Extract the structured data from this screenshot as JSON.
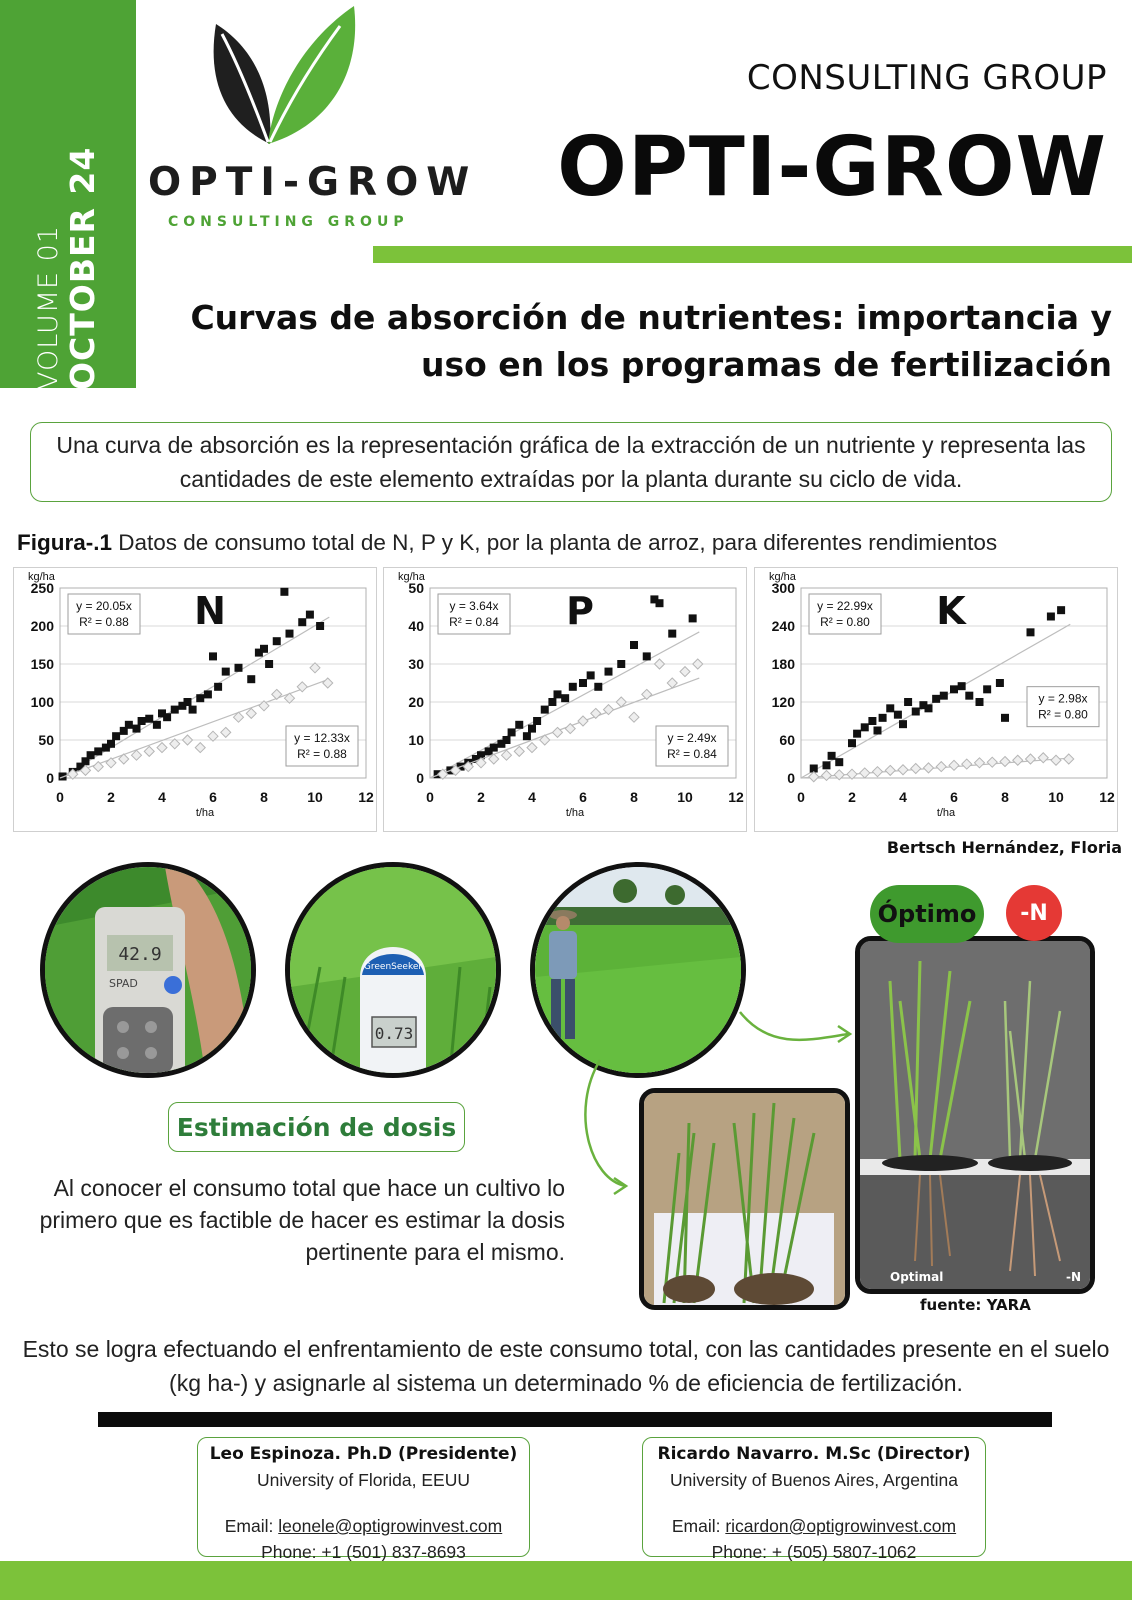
{
  "masthead": {
    "volume": "VOLUME 01",
    "date": "OCTOBER 24",
    "logo_name": "OPTI-GROW",
    "logo_subtitle": "CONSULTING GROUP",
    "brand_subtitle": "CONSULTING GROUP",
    "brand_title": "OPTI-GROW"
  },
  "headline": "Curvas de absorción de nutrientes: importancia y uso en los programas de fertilización",
  "definition": "Una curva de absorción es la representación gráfica de la extracción de un nutriente y representa las cantidades de este elemento extraídas por la planta durante su ciclo de vida.",
  "figure": {
    "caption_bold": "Figura-.1",
    "caption_text": " Datos de consumo total de N, P y K, por la planta de arroz, para diferentes rendimientos",
    "credit": "Bertsch Hernández, Floria"
  },
  "chart_data": [
    {
      "type": "scatter",
      "title": "N",
      "xlabel": "t/ha",
      "ylabel": "kg/ha",
      "xlim": [
        0,
        12
      ],
      "ylim": [
        0,
        250
      ],
      "xticks": [
        "0",
        "2",
        "4",
        "6",
        "8",
        "10",
        "12"
      ],
      "yticks": [
        "0",
        "50",
        "100",
        "150",
        "200",
        "250"
      ],
      "series": [
        {
          "marker": "square-black",
          "equation": "y = 20.05x",
          "r2": "R² = 0.88",
          "points": [
            [
              0.1,
              2
            ],
            [
              0.5,
              8
            ],
            [
              0.8,
              15
            ],
            [
              1.0,
              22
            ],
            [
              1.2,
              30
            ],
            [
              1.5,
              35
            ],
            [
              1.8,
              40
            ],
            [
              2.0,
              45
            ],
            [
              2.2,
              55
            ],
            [
              2.5,
              62
            ],
            [
              2.7,
              70
            ],
            [
              3.0,
              65
            ],
            [
              3.2,
              75
            ],
            [
              3.5,
              78
            ],
            [
              3.8,
              70
            ],
            [
              4.0,
              85
            ],
            [
              4.2,
              80
            ],
            [
              4.5,
              90
            ],
            [
              4.8,
              95
            ],
            [
              5.0,
              100
            ],
            [
              5.2,
              90
            ],
            [
              5.5,
              105
            ],
            [
              5.8,
              110
            ],
            [
              6.0,
              160
            ],
            [
              6.2,
              120
            ],
            [
              6.5,
              140
            ],
            [
              7.0,
              145
            ],
            [
              7.5,
              130
            ],
            [
              7.8,
              165
            ],
            [
              8.0,
              170
            ],
            [
              8.2,
              150
            ],
            [
              8.5,
              180
            ],
            [
              8.8,
              245
            ],
            [
              9.0,
              190
            ],
            [
              9.5,
              205
            ],
            [
              9.8,
              215
            ],
            [
              10.2,
              200
            ]
          ]
        },
        {
          "marker": "diamond-gray",
          "equation": "y = 12.33x",
          "r2": "R² = 0.88",
          "points": [
            [
              0.5,
              5
            ],
            [
              1.0,
              10
            ],
            [
              1.5,
              15
            ],
            [
              2.0,
              20
            ],
            [
              2.5,
              25
            ],
            [
              3.0,
              30
            ],
            [
              3.5,
              35
            ],
            [
              4.0,
              40
            ],
            [
              4.5,
              45
            ],
            [
              5.0,
              50
            ],
            [
              5.5,
              40
            ],
            [
              6.0,
              55
            ],
            [
              6.5,
              60
            ],
            [
              7.0,
              80
            ],
            [
              7.5,
              85
            ],
            [
              8.0,
              95
            ],
            [
              8.5,
              110
            ],
            [
              9.0,
              105
            ],
            [
              9.5,
              120
            ],
            [
              10.0,
              145
            ],
            [
              10.5,
              125
            ]
          ]
        }
      ]
    },
    {
      "type": "scatter",
      "title": "P",
      "xlabel": "t/ha",
      "ylabel": "kg/ha",
      "xlim": [
        0,
        12
      ],
      "ylim": [
        0,
        50
      ],
      "xticks": [
        "0",
        "2",
        "4",
        "6",
        "8",
        "10",
        "12"
      ],
      "yticks": [
        "0",
        "10",
        "20",
        "30",
        "40",
        "50"
      ],
      "series": [
        {
          "marker": "square-black",
          "equation": "y = 3.64x",
          "r2": "R² = 0.84",
          "points": [
            [
              0.3,
              1
            ],
            [
              0.8,
              2
            ],
            [
              1.2,
              3
            ],
            [
              1.5,
              4
            ],
            [
              1.8,
              5
            ],
            [
              2.0,
              6
            ],
            [
              2.3,
              7
            ],
            [
              2.5,
              8
            ],
            [
              2.8,
              9
            ],
            [
              3.0,
              10
            ],
            [
              3.2,
              12
            ],
            [
              3.5,
              14
            ],
            [
              3.8,
              11
            ],
            [
              4.0,
              13
            ],
            [
              4.2,
              15
            ],
            [
              4.5,
              18
            ],
            [
              4.8,
              20
            ],
            [
              5.0,
              22
            ],
            [
              5.3,
              21
            ],
            [
              5.6,
              24
            ],
            [
              6.0,
              25
            ],
            [
              6.3,
              27
            ],
            [
              6.6,
              24
            ],
            [
              7.0,
              28
            ],
            [
              7.5,
              30
            ],
            [
              8.0,
              35
            ],
            [
              8.5,
              32
            ],
            [
              8.8,
              47
            ],
            [
              9.0,
              46
            ],
            [
              9.5,
              38
            ],
            [
              10.3,
              42
            ]
          ]
        },
        {
          "marker": "diamond-gray",
          "equation": "y = 2.49x",
          "r2": "R² = 0.84",
          "points": [
            [
              0.5,
              1
            ],
            [
              1.0,
              2
            ],
            [
              1.5,
              3
            ],
            [
              2.0,
              4
            ],
            [
              2.5,
              5
            ],
            [
              3.0,
              6
            ],
            [
              3.5,
              7
            ],
            [
              4.0,
              8
            ],
            [
              4.5,
              10
            ],
            [
              5.0,
              12
            ],
            [
              5.5,
              13
            ],
            [
              6.0,
              15
            ],
            [
              6.5,
              17
            ],
            [
              7.0,
              18
            ],
            [
              7.5,
              20
            ],
            [
              8.0,
              16
            ],
            [
              8.5,
              22
            ],
            [
              9.0,
              30
            ],
            [
              9.5,
              25
            ],
            [
              10.0,
              28
            ],
            [
              10.5,
              30
            ]
          ]
        }
      ]
    },
    {
      "type": "scatter",
      "title": "K",
      "xlabel": "t/ha",
      "ylabel": "kg/ha",
      "xlim": [
        0,
        12
      ],
      "ylim": [
        0,
        300
      ],
      "xticks": [
        "0",
        "2",
        "4",
        "6",
        "8",
        "10",
        "12"
      ],
      "yticks": [
        "0",
        "60",
        "120",
        "180",
        "240",
        "300"
      ],
      "series": [
        {
          "marker": "square-black",
          "equation": "y = 22.99x",
          "r2": "R² = 0.80",
          "points": [
            [
              0.5,
              15
            ],
            [
              1.0,
              20
            ],
            [
              1.2,
              35
            ],
            [
              1.5,
              25
            ],
            [
              2.0,
              55
            ],
            [
              2.2,
              70
            ],
            [
              2.5,
              80
            ],
            [
              2.8,
              90
            ],
            [
              3.0,
              75
            ],
            [
              3.2,
              95
            ],
            [
              3.5,
              110
            ],
            [
              3.8,
              100
            ],
            [
              4.0,
              85
            ],
            [
              4.2,
              120
            ],
            [
              4.5,
              105
            ],
            [
              4.8,
              115
            ],
            [
              5.0,
              110
            ],
            [
              5.3,
              125
            ],
            [
              5.6,
              130
            ],
            [
              6.0,
              140
            ],
            [
              6.3,
              145
            ],
            [
              6.6,
              130
            ],
            [
              7.0,
              120
            ],
            [
              7.3,
              140
            ],
            [
              7.8,
              150
            ],
            [
              8.0,
              95
            ],
            [
              9.0,
              230
            ],
            [
              9.8,
              255
            ],
            [
              10.2,
              265
            ]
          ]
        },
        {
          "marker": "diamond-gray",
          "equation": "y = 2.98x",
          "r2": "R² = 0.80",
          "points": [
            [
              0.5,
              2
            ],
            [
              1.0,
              4
            ],
            [
              1.5,
              5
            ],
            [
              2.0,
              6
            ],
            [
              2.5,
              8
            ],
            [
              3.0,
              10
            ],
            [
              3.5,
              12
            ],
            [
              4.0,
              13
            ],
            [
              4.5,
              15
            ],
            [
              5.0,
              16
            ],
            [
              5.5,
              18
            ],
            [
              6.0,
              20
            ],
            [
              6.5,
              22
            ],
            [
              7.0,
              24
            ],
            [
              7.5,
              25
            ],
            [
              8.0,
              26
            ],
            [
              8.5,
              28
            ],
            [
              9.0,
              30
            ],
            [
              9.5,
              32
            ],
            [
              10.0,
              28
            ],
            [
              10.5,
              30
            ]
          ]
        }
      ]
    }
  ],
  "estimation": {
    "badge": "Estimación de dosis",
    "body": "Al conocer el consumo total que hace un cultivo lo primero que es factible de hacer es estimar la dosis pertinente para el mismo."
  },
  "photos": {
    "spad_reading": "42.9",
    "spad_label": "SPAD",
    "greenseeker_label": "GreenSeeker",
    "greenseeker_reading": "0.73",
    "optimo_label": "Óptimo",
    "minus_n_label": "-N",
    "photo_left_caption": "Optimal",
    "photo_right_caption": "-N",
    "source": "fuente: YARA"
  },
  "closing": "Esto se logra efectuando el enfrentamiento de este consumo total, con las cantidades presente en el suelo (kg ha-) y asignarle al sistema un determinado % de eficiencia de fertilización.",
  "contacts": [
    {
      "name": "Leo Espinoza. Ph.D (Presidente)",
      "affiliation": "University of Florida, EEUU",
      "email_label": "Email: ",
      "email": "leonele@optigrowinvest.com",
      "phone": "Phone: +1 (501) 837-8693"
    },
    {
      "name": "Ricardo Navarro. M.Sc (Director)",
      "affiliation": "University of Buenos Aires, Argentina",
      "email_label": "Email: ",
      "email": "ricardon@optigrowinvest.com",
      "phone": "Phone: + (505) 5807-1062"
    }
  ],
  "colors": {
    "brand_green": "#4ea335",
    "lime_green": "#7cc23a",
    "dark_leaf": "#1f1f1f",
    "alert_red": "#e53935"
  }
}
